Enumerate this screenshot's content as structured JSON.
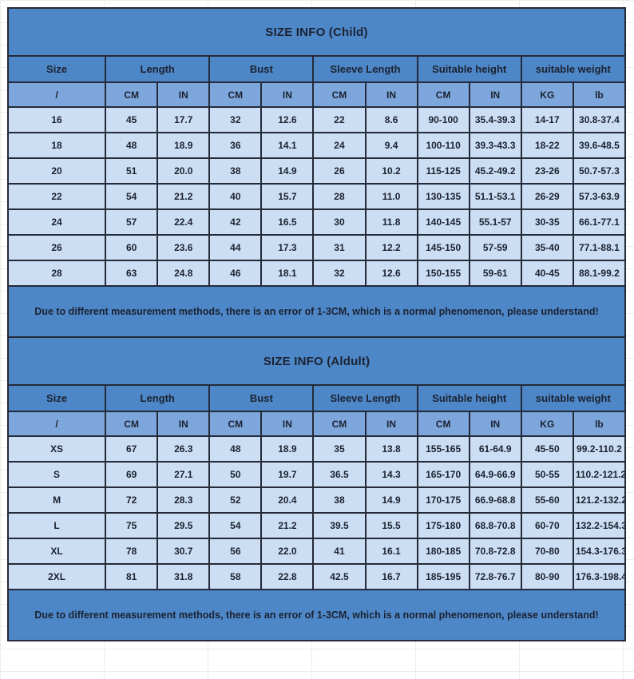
{
  "colors": {
    "header_blue": "#4e87c8",
    "subheader_blue": "#7da7dc",
    "row_blue": "#ccdef4",
    "border": "#242a38"
  },
  "tables": [
    {
      "title": "SIZE INFO (Child)",
      "column_groups": [
        "Size",
        "Length",
        "Bust",
        "Sleeve Length",
        "Suitable height",
        "suitable weight"
      ],
      "sub_headers": [
        "/",
        "CM",
        "IN",
        "CM",
        "IN",
        "CM",
        "IN",
        "CM",
        "IN",
        "KG",
        "lb"
      ],
      "rows": [
        [
          "16",
          "45",
          "17.7",
          "32",
          "12.6",
          "22",
          "8.6",
          "90-100",
          "35.4-39.3",
          "14-17",
          "30.8-37.4"
        ],
        [
          "18",
          "48",
          "18.9",
          "36",
          "14.1",
          "24",
          "9.4",
          "100-110",
          "39.3-43.3",
          "18-22",
          "39.6-48.5"
        ],
        [
          "20",
          "51",
          "20.0",
          "38",
          "14.9",
          "26",
          "10.2",
          "115-125",
          "45.2-49.2",
          "23-26",
          "50.7-57.3"
        ],
        [
          "22",
          "54",
          "21.2",
          "40",
          "15.7",
          "28",
          "11.0",
          "130-135",
          "51.1-53.1",
          "26-29",
          "57.3-63.9"
        ],
        [
          "24",
          "57",
          "22.4",
          "42",
          "16.5",
          "30",
          "11.8",
          "140-145",
          "55.1-57",
          "30-35",
          "66.1-77.1"
        ],
        [
          "26",
          "60",
          "23.6",
          "44",
          "17.3",
          "31",
          "12.2",
          "145-150",
          "57-59",
          "35-40",
          "77.1-88.1"
        ],
        [
          "28",
          "63",
          "24.8",
          "46",
          "18.1",
          "32",
          "12.6",
          "150-155",
          "59-61",
          "40-45",
          "88.1-99.2"
        ]
      ],
      "note": "Due to different measurement methods, there is an error of 1-3CM, which is a normal phenomenon, please understand!"
    },
    {
      "title": "SIZE INFO (Aldult)",
      "column_groups": [
        "Size",
        "Length",
        "Bust",
        "Sleeve Length",
        "Suitable height",
        "suitable weight"
      ],
      "sub_headers": [
        "/",
        "CM",
        "IN",
        "CM",
        "IN",
        "CM",
        "IN",
        "CM",
        "IN",
        "KG",
        "lb"
      ],
      "rows": [
        [
          "XS",
          "67",
          "26.3",
          "48",
          "18.9",
          "35",
          "13.8",
          "155-165",
          "61-64.9",
          "45-50",
          "99.2-110.2"
        ],
        [
          "S",
          "69",
          "27.1",
          "50",
          "19.7",
          "36.5",
          "14.3",
          "165-170",
          "64.9-66.9",
          "50-55",
          "110.2-121.2"
        ],
        [
          "M",
          "72",
          "28.3",
          "52",
          "20.4",
          "38",
          "14.9",
          "170-175",
          "66.9-68.8",
          "55-60",
          "121.2-132.2"
        ],
        [
          "L",
          "75",
          "29.5",
          "54",
          "21.2",
          "39.5",
          "15.5",
          "175-180",
          "68.8-70.8",
          "60-70",
          "132.2-154.3"
        ],
        [
          "XL",
          "78",
          "30.7",
          "56",
          "22.0",
          "41",
          "16.1",
          "180-185",
          "70.8-72.8",
          "70-80",
          "154.3-176.3"
        ],
        [
          "2XL",
          "81",
          "31.8",
          "58",
          "22.8",
          "42.5",
          "16.7",
          "185-195",
          "72.8-76.7",
          "80-90",
          "176.3-198.4"
        ]
      ],
      "note": "Due to different measurement methods, there is an error of 1-3CM, which is a normal phenomenon, please understand!"
    }
  ]
}
